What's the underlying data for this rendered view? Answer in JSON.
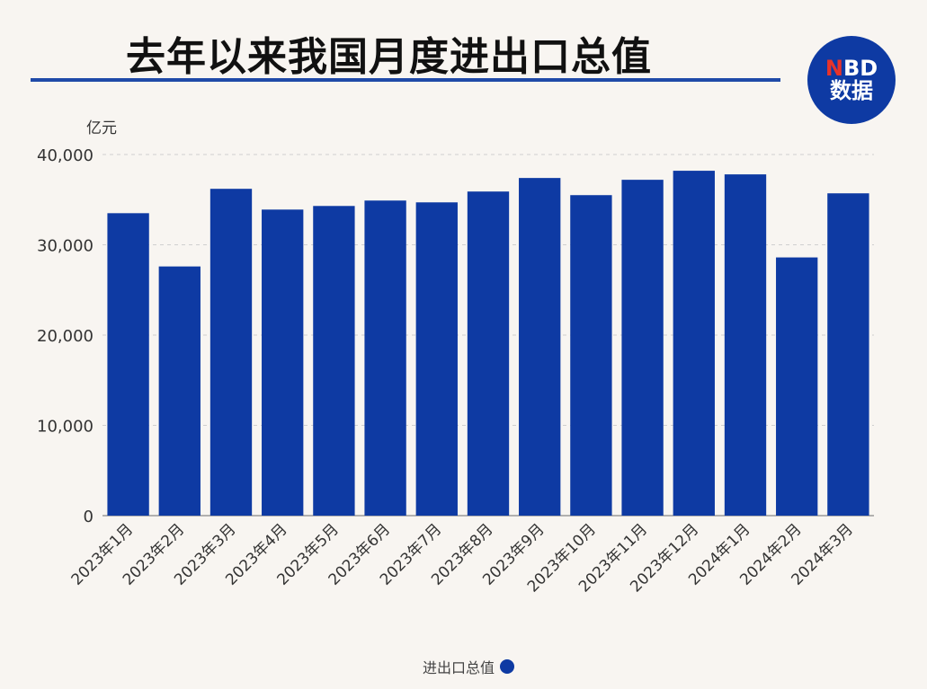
{
  "title": "去年以来我国月度进出口总值",
  "logo": {
    "line1_accent": "N",
    "line1_rest": "BD",
    "line2": "数据"
  },
  "colors": {
    "bar": "#0e3aa3",
    "accent": "#1f4aa8",
    "background": "#f8f5f1"
  },
  "chart_data": {
    "type": "bar",
    "title": "去年以来我国月度进出口总值",
    "ylabel": "亿元",
    "xlabel": "",
    "ylim": [
      0,
      40000
    ],
    "yticks": [
      0,
      10000,
      20000,
      30000,
      40000
    ],
    "ytick_labels": [
      "0",
      "10,000",
      "20,000",
      "30,000",
      "40,000"
    ],
    "grid": true,
    "legend": "bottom-center",
    "categories": [
      "2023年1月",
      "2023年2月",
      "2023年3月",
      "2023年4月",
      "2023年5月",
      "2023年6月",
      "2023年7月",
      "2023年8月",
      "2023年9月",
      "2023年10月",
      "2023年11月",
      "2023年12月",
      "2024年1月",
      "2024年2月",
      "2024年3月"
    ],
    "series": [
      {
        "name": "进出口总值",
        "values": [
          33500,
          27600,
          36200,
          33900,
          34300,
          34900,
          34700,
          35900,
          37400,
          35500,
          37200,
          38200,
          37800,
          28600,
          35700
        ]
      }
    ]
  }
}
